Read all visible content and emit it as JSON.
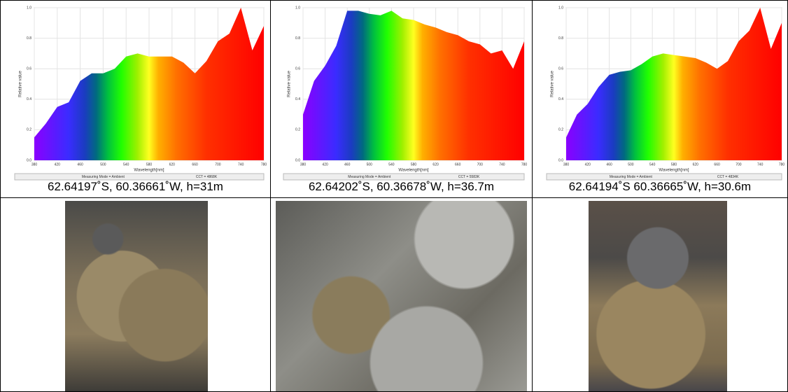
{
  "chart_data": [
    {
      "type": "area",
      "xlabel": "Wavelength[nm]",
      "ylabel": "Relative value",
      "x": [
        380,
        400,
        420,
        440,
        460,
        480,
        500,
        520,
        540,
        560,
        580,
        600,
        620,
        640,
        660,
        680,
        700,
        720,
        740,
        760,
        780
      ],
      "values": [
        0.15,
        0.24,
        0.35,
        0.38,
        0.52,
        0.57,
        0.57,
        0.6,
        0.68,
        0.7,
        0.68,
        0.68,
        0.68,
        0.64,
        0.57,
        0.65,
        0.78,
        0.83,
        1.0,
        0.72,
        0.88
      ],
      "xlim": [
        380,
        780
      ],
      "ylim": [
        0,
        1
      ],
      "xticks": [
        380,
        420,
        460,
        500,
        540,
        580,
        620,
        660,
        700,
        740,
        780
      ],
      "yticks": [
        {
          "value": 0,
          "label": "0.0"
        },
        0.2,
        0.4,
        0.6,
        0.8,
        {
          "value": 1,
          "label": "1.0"
        }
      ],
      "grid": true,
      "footer_left": "Measuring Mode = Ambient",
      "footer_right": "CCT = 4868K"
    },
    {
      "type": "area",
      "xlabel": "Wavelength[nm]",
      "ylabel": "Relative value",
      "x": [
        380,
        400,
        420,
        440,
        460,
        480,
        500,
        520,
        540,
        560,
        580,
        600,
        620,
        640,
        660,
        680,
        700,
        720,
        740,
        760,
        780
      ],
      "values": [
        0.3,
        0.52,
        0.62,
        0.75,
        0.98,
        0.98,
        0.96,
        0.95,
        0.98,
        0.93,
        0.92,
        0.89,
        0.87,
        0.84,
        0.82,
        0.78,
        0.76,
        0.7,
        0.72,
        0.6,
        0.78
      ],
      "xlim": [
        380,
        780
      ],
      "ylim": [
        0,
        1
      ],
      "xticks": [
        380,
        420,
        460,
        500,
        540,
        580,
        620,
        660,
        700,
        740,
        780
      ],
      "yticks": [
        {
          "value": 0,
          "label": "0.0"
        },
        0.2,
        0.4,
        0.6,
        0.8,
        {
          "value": 1,
          "label": "1.0"
        }
      ],
      "grid": true,
      "footer_left": "Measuring Mode = Ambient",
      "footer_right": "CCT = 5583K"
    },
    {
      "type": "area",
      "xlabel": "Wavelength[nm]",
      "ylabel": "Relative value",
      "x": [
        380,
        400,
        420,
        440,
        460,
        480,
        500,
        520,
        540,
        560,
        580,
        600,
        620,
        640,
        660,
        680,
        700,
        720,
        740,
        760,
        780
      ],
      "values": [
        0.15,
        0.3,
        0.37,
        0.48,
        0.56,
        0.58,
        0.59,
        0.63,
        0.68,
        0.7,
        0.69,
        0.68,
        0.67,
        0.64,
        0.6,
        0.65,
        0.78,
        0.85,
        1.0,
        0.73,
        0.9
      ],
      "xlim": [
        380,
        780
      ],
      "ylim": [
        0,
        1
      ],
      "xticks": [
        380,
        420,
        460,
        500,
        540,
        580,
        620,
        660,
        700,
        740,
        780
      ],
      "yticks": [
        {
          "value": 0,
          "label": "0.0"
        },
        0.2,
        0.4,
        0.6,
        0.8,
        {
          "value": 1,
          "label": "1.0"
        }
      ],
      "grid": true,
      "footer_left": "Measuring Mode = Ambient",
      "footer_right": "CCT = 4834K"
    }
  ],
  "captions": [
    "62.64197˚S, 60.36661˚W, h=31m",
    "62.64202˚S, 60.36678˚W, h=36.7m",
    "62.64194˚S 60.36665˚W, h=30.6m"
  ]
}
